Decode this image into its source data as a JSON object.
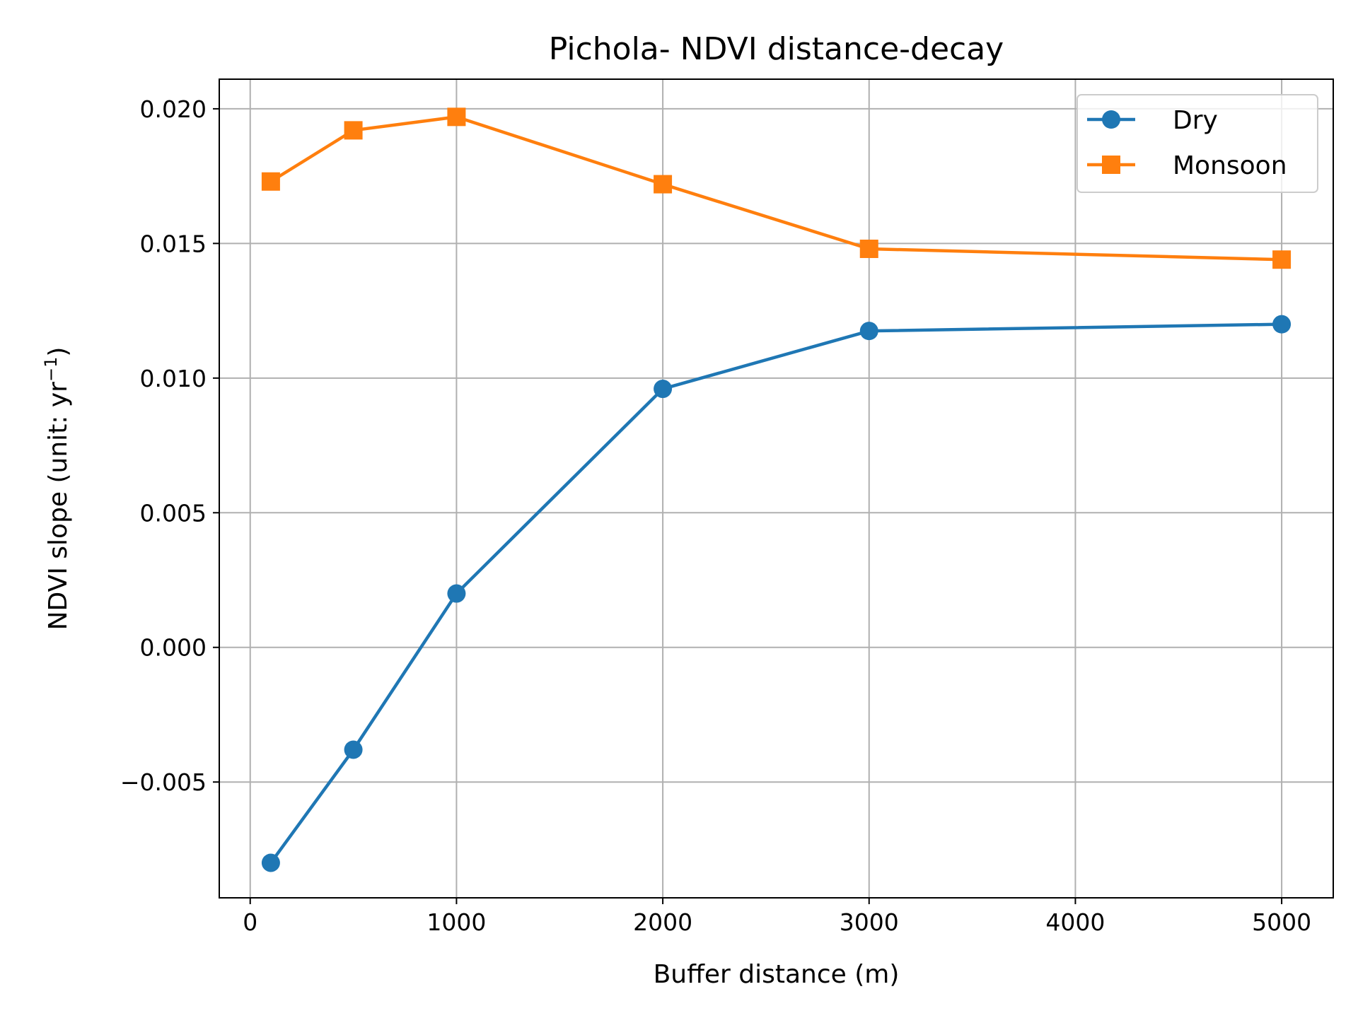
{
  "chart_data": {
    "type": "line",
    "title": "Pichola- NDVI distance-decay",
    "xlabel": "Buffer distance (m)",
    "ylabel_main": "NDVI slope (unit: yr",
    "ylabel_sup": "−1",
    "ylabel_close": ")",
    "x": [
      100,
      500,
      1000,
      2000,
      3000,
      5000
    ],
    "xlim": [
      -150,
      5250
    ],
    "ylim": [
      -0.0093,
      0.0211
    ],
    "xticks": [
      0,
      1000,
      2000,
      3000,
      4000,
      5000
    ],
    "xtick_labels": [
      "0",
      "1000",
      "2000",
      "3000",
      "4000",
      "5000"
    ],
    "yticks": [
      -0.005,
      0.0,
      0.005,
      0.01,
      0.015,
      0.02
    ],
    "ytick_labels": [
      "−0.005",
      "0.000",
      "0.005",
      "0.010",
      "0.015",
      "0.020"
    ],
    "grid": true,
    "legend_position": "top-right",
    "series": [
      {
        "name": "Dry",
        "color": "#1f77b4",
        "marker": "circle",
        "values": [
          -0.008,
          -0.0038,
          0.002,
          0.0096,
          0.01175,
          0.012
        ]
      },
      {
        "name": "Monsoon",
        "color": "#ff7f0e",
        "marker": "square",
        "values": [
          0.0173,
          0.0192,
          0.0197,
          0.0172,
          0.0148,
          0.0144
        ]
      }
    ]
  }
}
